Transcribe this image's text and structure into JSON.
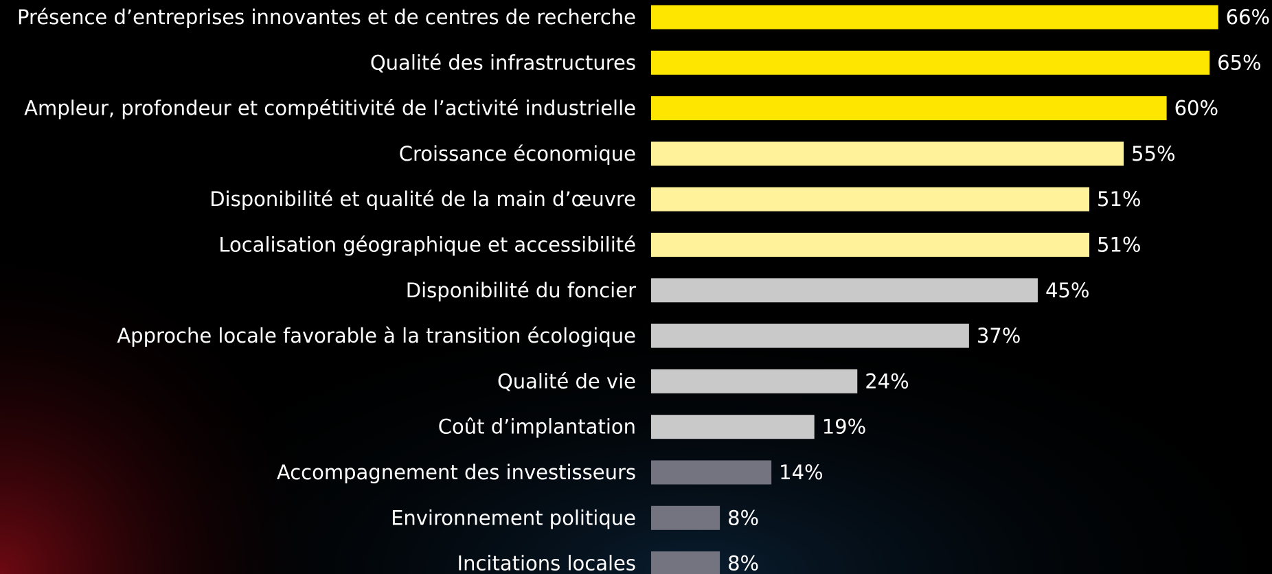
{
  "chart_data": {
    "type": "hbar",
    "categories": [
      "Présence d’entreprises innovantes et de centres de recherche",
      "Qualité des infrastructures",
      "Ampleur, profondeur et compétitivité de l’activité industrielle",
      "Croissance économique",
      "Disponibilité et qualité de la main d’œuvre",
      "Localisation géographique et accessibilité",
      "Disponibilité du foncier",
      "Approche locale favorable à la transition écologique",
      "Qualité de vie",
      "Coût d’implantation",
      "Accompagnement des investisseurs",
      "Environnement politique",
      "Incitations locales"
    ],
    "values": [
      66,
      65,
      60,
      55,
      51,
      51,
      45,
      37,
      24,
      19,
      14,
      8,
      8
    ],
    "value_labels": [
      "66%",
      "65%",
      "60%",
      "55%",
      "51%",
      "51%",
      "45%",
      "37%",
      "24%",
      "19%",
      "14%",
      "8%",
      "8%"
    ],
    "colors": [
      "#ffe600",
      "#ffe600",
      "#ffe600",
      "#fff29a",
      "#fff29a",
      "#fff29a",
      "#c9c9c9",
      "#c9c9c9",
      "#c9c9c9",
      "#c9c9c9",
      "#747480",
      "#747480",
      "#747480"
    ]
  }
}
